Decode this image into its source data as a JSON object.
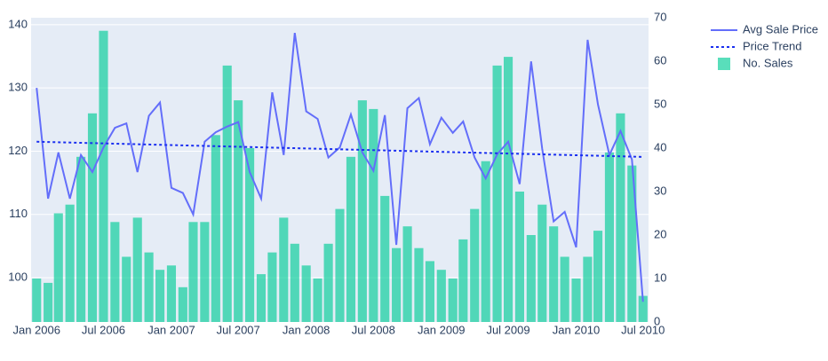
{
  "chart_data": {
    "type": "combo",
    "x": [
      "2006-01",
      "2006-02",
      "2006-03",
      "2006-04",
      "2006-05",
      "2006-06",
      "2006-07",
      "2006-08",
      "2006-09",
      "2006-10",
      "2006-11",
      "2006-12",
      "2007-01",
      "2007-02",
      "2007-03",
      "2007-04",
      "2007-05",
      "2007-06",
      "2007-07",
      "2007-08",
      "2007-09",
      "2007-10",
      "2007-11",
      "2007-12",
      "2008-01",
      "2008-02",
      "2008-03",
      "2008-04",
      "2008-05",
      "2008-06",
      "2008-07",
      "2008-08",
      "2008-09",
      "2008-10",
      "2008-11",
      "2008-12",
      "2009-01",
      "2009-02",
      "2009-03",
      "2009-04",
      "2009-05",
      "2009-06",
      "2009-07",
      "2009-08",
      "2009-09",
      "2009-10",
      "2009-11",
      "2009-12",
      "2010-01",
      "2010-02",
      "2010-03",
      "2010-04",
      "2010-05",
      "2010-06",
      "2010-07"
    ],
    "series": [
      {
        "name": "No. Sales",
        "type": "bar",
        "axis": "y2",
        "color": "#00cc96",
        "opacity": 0.65,
        "values": [
          10,
          9,
          25,
          27,
          38,
          48,
          67,
          23,
          15,
          24,
          16,
          12,
          13,
          8,
          23,
          23,
          43,
          59,
          51,
          40,
          11,
          16,
          24,
          18,
          13,
          10,
          18,
          26,
          38,
          51,
          49,
          29,
          17,
          22,
          17,
          14,
          12,
          10,
          19,
          26,
          37,
          59,
          61,
          30,
          20,
          27,
          22,
          15,
          10,
          15,
          21,
          39,
          48,
          36,
          6
        ]
      },
      {
        "name": "Avg Sale Price",
        "type": "line",
        "axis": "y",
        "color": "#636efa",
        "dash": "solid",
        "values": [
          130,
          112.5,
          119.8,
          112.5,
          119.4,
          116.7,
          120.6,
          123.7,
          124.4,
          116.7,
          125.6,
          127.7,
          114.2,
          113.4,
          110,
          121.5,
          123,
          123.9,
          124.6,
          116.7,
          112.5,
          129.3,
          119.4,
          138.7,
          126.3,
          125.1,
          119,
          120.6,
          125.8,
          119.8,
          116.9,
          125.7,
          105.2,
          126.8,
          128.4,
          121.1,
          125.3,
          122.9,
          124.7,
          119,
          115.7,
          119.5,
          121.5,
          114.8,
          134.2,
          120.4,
          108.9,
          110.4,
          104.8,
          137.6,
          127.4,
          119.4,
          123.2,
          118.7,
          96.2
        ]
      },
      {
        "name": "Price Trend",
        "type": "line",
        "axis": "y",
        "color": "#1a2ff0",
        "dash": "dot",
        "x": [
          "2006-01",
          "2010-07"
        ],
        "values": [
          121.5,
          119.1
        ]
      }
    ],
    "xlim": [
      "2005-12-17",
      "2010-07-16"
    ],
    "xticks": [
      {
        "value": "2006-01",
        "label": "Jan 2006"
      },
      {
        "value": "2006-07",
        "label": "Jul 2006"
      },
      {
        "value": "2007-01",
        "label": "Jan 2007"
      },
      {
        "value": "2007-07",
        "label": "Jul 2007"
      },
      {
        "value": "2008-01",
        "label": "Jan 2008"
      },
      {
        "value": "2008-07",
        "label": "Jul 2008"
      },
      {
        "value": "2009-01",
        "label": "Jan 2009"
      },
      {
        "value": "2009-07",
        "label": "Jul 2009"
      },
      {
        "value": "2010-01",
        "label": "Jan 2010"
      },
      {
        "value": "2010-07",
        "label": "Jul 2010"
      }
    ],
    "ylim": [
      93,
      141.1
    ],
    "yticks": [
      100,
      110,
      120,
      130,
      140
    ],
    "y2lim": [
      0,
      70
    ],
    "y2ticks": [
      0,
      10,
      20,
      30,
      40,
      50,
      60,
      70
    ],
    "grid": true,
    "legend": "right"
  }
}
